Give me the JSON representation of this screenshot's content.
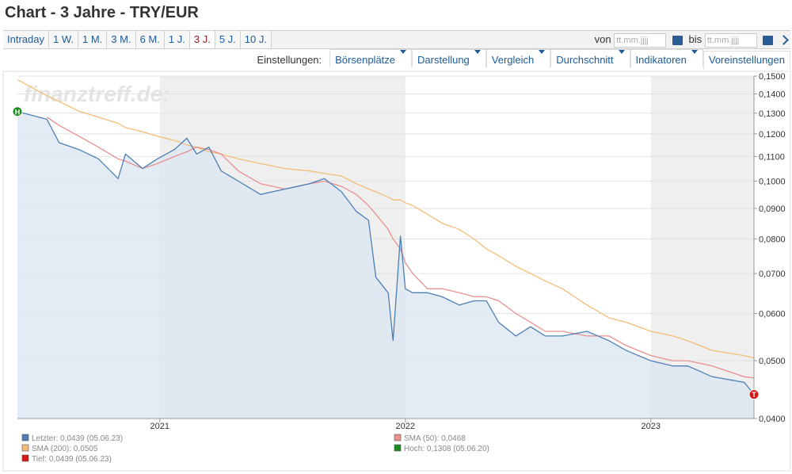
{
  "header": {
    "title": "Chart - 3 Jahre - TRY/EUR",
    "tabs": [
      "Intraday",
      "1 W.",
      "1 M.",
      "3 M.",
      "6 M.",
      "1 J.",
      "3 J.",
      "5 J.",
      "10 J."
    ],
    "active_tab": 6,
    "from_label": "von",
    "to_label": "bis",
    "date_placeholder": "tt.mm.jjjj",
    "settings_label": "Einstellungen:",
    "menus": [
      "Börsenplätze",
      "Darstellung",
      "Vergleich",
      "Durchschnitt",
      "Indikatoren",
      "Voreinstellungen"
    ]
  },
  "chart_data": {
    "type": "line",
    "watermark": "finanztreff.de:",
    "x": [
      2020.42,
      2020.54,
      2020.59,
      2020.67,
      2020.75,
      2020.83,
      2020.86,
      2020.93,
      2020.99,
      2021.06,
      2021.11,
      2021.15,
      2021.2,
      2021.25,
      2021.32,
      2021.41,
      2021.51,
      2021.61,
      2021.67,
      2021.74,
      2021.8,
      2021.85,
      2021.88,
      2021.93,
      2021.95,
      2021.98,
      2022.0,
      2022.03,
      2022.09,
      2022.15,
      2022.22,
      2022.28,
      2022.33,
      2022.38,
      2022.45,
      2022.51,
      2022.57,
      2022.64,
      2022.74,
      2022.83,
      2022.9,
      2023.0,
      2023.09,
      2023.15,
      2023.25,
      2023.38,
      2023.42
    ],
    "xlim": [
      2020.42,
      2023.42
    ],
    "xticks": [
      2021,
      2022,
      2023
    ],
    "ylim": [
      0.04,
      0.15
    ],
    "log_scale": true,
    "grid": true,
    "yticks": [
      {
        "value": 0.04,
        "label": "0,0400"
      },
      {
        "value": 0.05,
        "label": "0,0500"
      },
      {
        "value": 0.06,
        "label": "0,0600"
      },
      {
        "value": 0.07,
        "label": "0,0700"
      },
      {
        "value": 0.08,
        "label": "0,0800"
      },
      {
        "value": 0.09,
        "label": "0,0900"
      },
      {
        "value": 0.1,
        "label": "0,1000"
      },
      {
        "value": 0.11,
        "label": "0,1100"
      },
      {
        "value": 0.12,
        "label": "0,1200"
      },
      {
        "value": 0.13,
        "label": "0,1300"
      },
      {
        "value": 0.14,
        "label": "0,1400"
      },
      {
        "value": 0.15,
        "label": "0,1500"
      }
    ],
    "series": [
      {
        "name": "Letzter: 0,0439 (05.06.23)",
        "color": "#4d7fb5",
        "area_color": "#dce6f1",
        "values": [
          0.1308,
          0.127,
          0.116,
          0.113,
          0.109,
          0.101,
          0.111,
          0.105,
          0.109,
          0.113,
          0.118,
          0.111,
          0.114,
          0.104,
          0.1,
          0.095,
          0.097,
          0.099,
          0.101,
          0.096,
          0.089,
          0.086,
          0.069,
          0.065,
          0.054,
          0.081,
          0.066,
          0.065,
          0.065,
          0.064,
          0.062,
          0.063,
          0.063,
          0.058,
          0.055,
          0.057,
          0.055,
          0.055,
          0.056,
          0.054,
          0.052,
          0.05,
          0.049,
          0.049,
          0.047,
          0.046,
          0.0439
        ]
      },
      {
        "name": "SMA (50): 0,0468",
        "color": "#e89090",
        "values": [
          null,
          0.128,
          0.124,
          0.119,
          0.114,
          0.109,
          0.108,
          0.105,
          0.107,
          0.11,
          0.112,
          0.114,
          0.113,
          0.111,
          0.104,
          0.099,
          0.097,
          0.099,
          0.1,
          0.098,
          0.095,
          0.091,
          0.088,
          0.083,
          0.08,
          0.077,
          0.073,
          0.07,
          0.066,
          0.066,
          0.065,
          0.064,
          0.064,
          0.063,
          0.06,
          0.058,
          0.056,
          0.056,
          0.055,
          0.055,
          0.053,
          0.051,
          0.05,
          0.05,
          0.049,
          0.047,
          0.0468
        ]
      },
      {
        "name": "SMA (200): 0,0505",
        "color": "#f2bd78",
        "values": [
          0.148,
          0.139,
          0.136,
          0.131,
          0.128,
          0.125,
          0.123,
          0.121,
          0.119,
          0.117,
          0.115,
          0.114,
          0.112,
          0.111,
          0.109,
          0.107,
          0.105,
          0.104,
          0.103,
          0.102,
          0.099,
          0.097,
          0.096,
          0.094,
          0.093,
          0.093,
          0.092,
          0.091,
          0.088,
          0.085,
          0.083,
          0.08,
          0.077,
          0.075,
          0.072,
          0.07,
          0.068,
          0.066,
          0.062,
          0.059,
          0.058,
          0.056,
          0.055,
          0.054,
          0.052,
          0.051,
          0.0505
        ]
      }
    ],
    "markers": [
      {
        "label": "H",
        "name": "Hoch: 0,1308 (05.06.20)",
        "color": "#1e8a1e",
        "x": 2020.42,
        "value": 0.1308
      },
      {
        "label": "T",
        "name": "Tief: 0,0439 (05.06.23)",
        "color": "#d81818",
        "x": 2023.42,
        "value": 0.0439
      }
    ]
  }
}
